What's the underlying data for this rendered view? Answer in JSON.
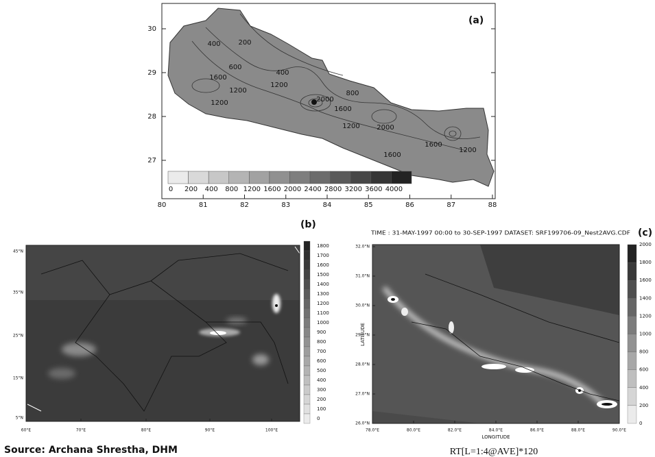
{
  "panel_a": {
    "label": "(a)",
    "x_ticks": [
      "80",
      "81",
      "82",
      "83",
      "84",
      "85",
      "86",
      "87",
      "88"
    ],
    "y_ticks": [
      "30",
      "29",
      "28",
      "27"
    ],
    "colorbar_labels": [
      "0",
      "200",
      "400",
      "800",
      "1200",
      "1600",
      "2000",
      "2400",
      "2800",
      "3200",
      "3600",
      "4000"
    ],
    "contour_labels": [
      "400",
      "200",
      "600",
      "400",
      "1200",
      "1600",
      "1200",
      "1200",
      "2000",
      "800",
      "1600",
      "1200",
      "2000",
      "1600",
      "1600",
      "1200"
    ]
  },
  "panel_b": {
    "label": "(b)",
    "x_ticks": [
      "60°E",
      "70°E",
      "80°E",
      "90°E",
      "100°E"
    ],
    "y_ticks": [
      "45°N",
      "35°N",
      "25°N",
      "15°N",
      "5°N"
    ],
    "colorbar_labels": [
      "1800",
      "1700",
      "1600",
      "1500",
      "1400",
      "1300",
      "1200",
      "1100",
      "1000",
      "900",
      "800",
      "700",
      "600",
      "500",
      "400",
      "300",
      "200",
      "100",
      "0"
    ]
  },
  "panel_c": {
    "label": "(c)",
    "header": "TIME : 31-MAY-1997 00:00 to 30-SEP-1997 DATASET: SRF199706-09_Nest2AVG.CDF",
    "x_ticks": [
      "78.0°E",
      "80.0°E",
      "82.0°E",
      "84.0°E",
      "86.0°E",
      "88.0°E",
      "90.0°E"
    ],
    "y_ticks": [
      "32.0°N",
      "31.0°N",
      "30.0°N",
      "29.0°N",
      "28.0°N",
      "27.0°N",
      "26.0°N"
    ],
    "x_axis_label": "LONGITUDE",
    "y_axis_label": "LATITUDE",
    "colorbar_labels": [
      "2000",
      "1800",
      "1600",
      "1400",
      "1200",
      "1000",
      "800",
      "600",
      "400",
      "200",
      "0"
    ]
  },
  "source": "Source: Archana Shrestha, DHM",
  "formula": "RT[L=1:4@AVE]*120"
}
